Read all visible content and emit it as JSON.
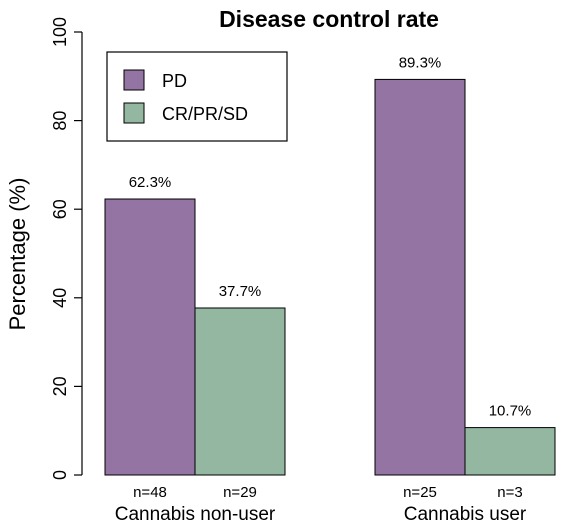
{
  "chart_data": {
    "type": "bar",
    "title": "Disease control rate",
    "ylabel": "Percentage (%)",
    "xlabel": "",
    "ylim": [
      0,
      100
    ],
    "yticks": [
      0,
      20,
      40,
      60,
      80,
      100
    ],
    "groups": [
      {
        "label": "Cannabis non-user",
        "bars": [
          {
            "series": "PD",
            "value": 62.3,
            "value_label": "62.3%",
            "n_label": "n=48"
          },
          {
            "series": "CR/PR/SD",
            "value": 37.7,
            "value_label": "37.7%",
            "n_label": "n=29"
          }
        ]
      },
      {
        "label": "Cannabis user",
        "bars": [
          {
            "series": "PD",
            "value": 89.3,
            "value_label": "89.3%",
            "n_label": "n=25"
          },
          {
            "series": "CR/PR/SD",
            "value": 10.7,
            "value_label": "10.7%",
            "n_label": "n=3"
          }
        ]
      }
    ],
    "series": [
      {
        "name": "PD",
        "color": "#9474a3"
      },
      {
        "name": "CR/PR/SD",
        "color": "#93b7a0"
      }
    ],
    "legend": {
      "position": "top-left"
    },
    "grid": false
  }
}
